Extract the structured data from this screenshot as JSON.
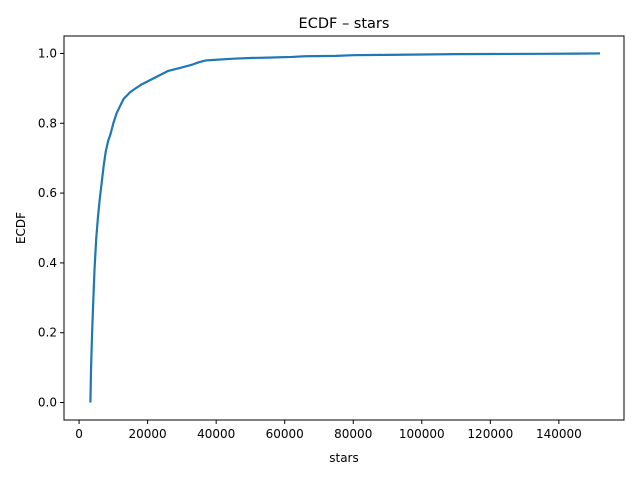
{
  "chart_data": {
    "type": "line",
    "title": "ECDF – stars",
    "xlabel": "stars",
    "ylabel": "ECDF",
    "xlim": [
      -4400,
      159000
    ],
    "ylim": [
      -0.05,
      1.05
    ],
    "xticks": [
      {
        "value": 0,
        "label": "0"
      },
      {
        "value": 20000,
        "label": "20000"
      },
      {
        "value": 40000,
        "label": "40000"
      },
      {
        "value": 60000,
        "label": "60000"
      },
      {
        "value": 80000,
        "label": "80000"
      },
      {
        "value": 100000,
        "label": "100000"
      },
      {
        "value": 120000,
        "label": "120000"
      },
      {
        "value": 140000,
        "label": "140000"
      }
    ],
    "yticks": [
      {
        "value": 0.0,
        "label": "0.0"
      },
      {
        "value": 0.2,
        "label": "0.2"
      },
      {
        "value": 0.4,
        "label": "0.4"
      },
      {
        "value": 0.6,
        "label": "0.6"
      },
      {
        "value": 0.8,
        "label": "0.8"
      },
      {
        "value": 1.0,
        "label": "1.0"
      }
    ],
    "grid": false,
    "series": [
      {
        "color": "#1f77b4",
        "x": [
          3300,
          3500,
          3800,
          4100,
          4500,
          5000,
          5500,
          6000,
          6600,
          7200,
          7800,
          8500,
          9200,
          10000,
          11000,
          12000,
          13000,
          14000,
          15000,
          16500,
          18000,
          20000,
          22000,
          24000,
          26000,
          28000,
          30000,
          33000,
          35000,
          37000,
          40000,
          45000,
          50000,
          55000,
          62000,
          66000,
          75000,
          80000,
          90000,
          100000,
          110000,
          120000,
          135000,
          145000,
          152000
        ],
        "y": [
          0.0,
          0.1,
          0.2,
          0.28,
          0.38,
          0.47,
          0.53,
          0.58,
          0.63,
          0.68,
          0.72,
          0.75,
          0.77,
          0.8,
          0.83,
          0.85,
          0.87,
          0.88,
          0.89,
          0.9,
          0.91,
          0.92,
          0.93,
          0.94,
          0.95,
          0.955,
          0.96,
          0.968,
          0.975,
          0.98,
          0.982,
          0.985,
          0.987,
          0.988,
          0.99,
          0.992,
          0.993,
          0.995,
          0.996,
          0.997,
          0.998,
          0.9985,
          0.999,
          0.9995,
          1.0
        ]
      }
    ]
  }
}
